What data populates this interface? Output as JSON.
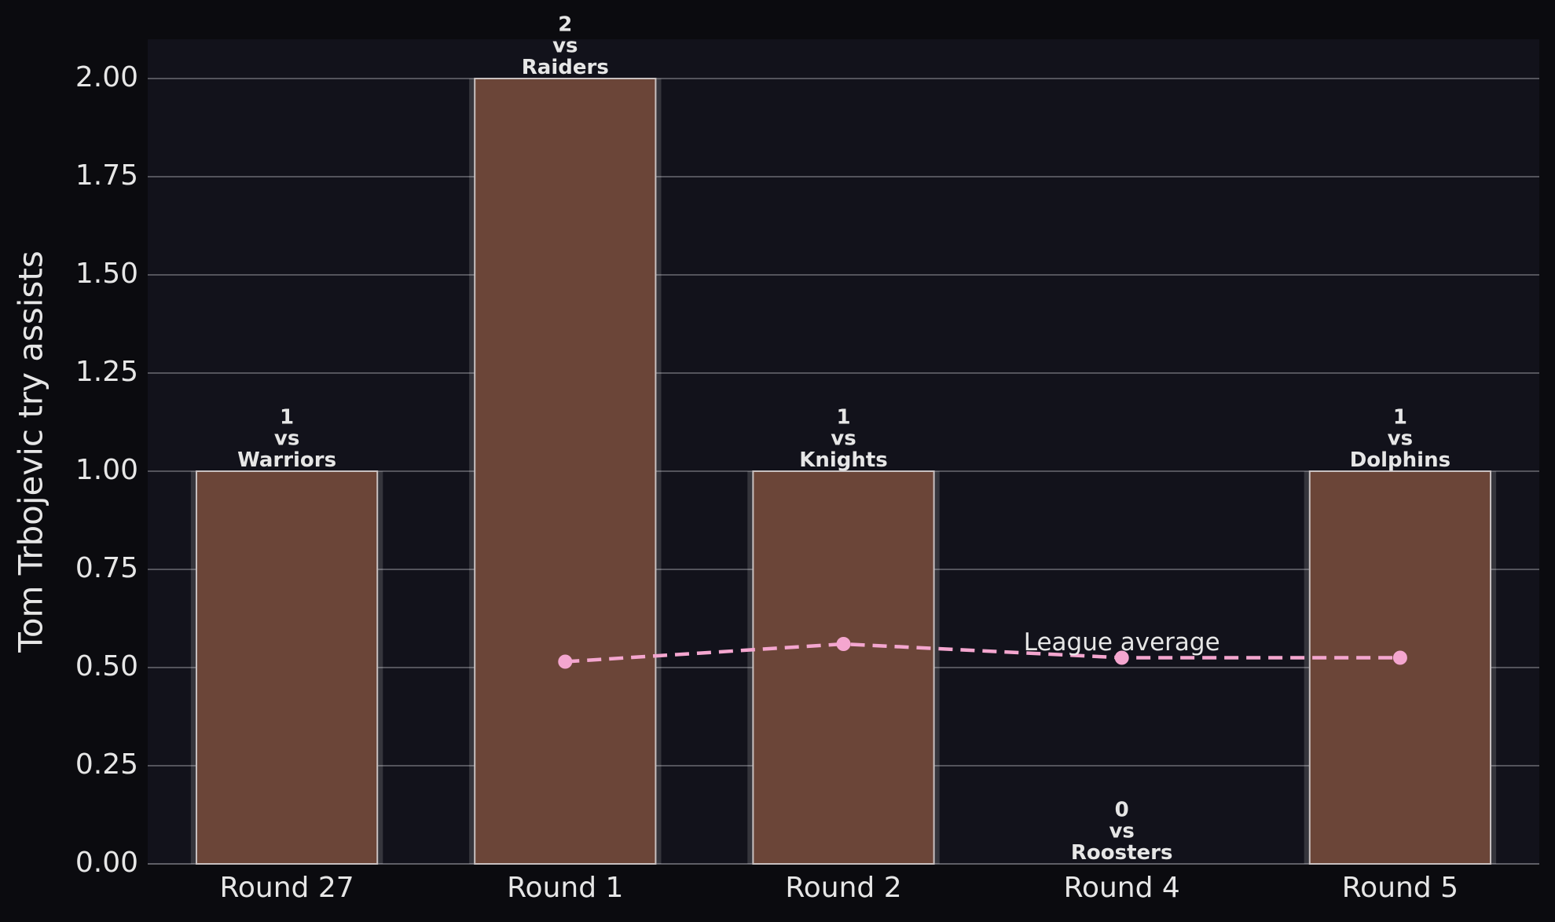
{
  "chart_data": {
    "type": "bar",
    "ylabel": "Tom Trbojevic try assists",
    "categories": [
      "Round 27",
      "Round 1",
      "Round 2",
      "Round 4",
      "Round 5"
    ],
    "values": [
      1,
      2,
      1,
      0,
      1
    ],
    "value_labels": [
      "1\nvs\nWarriors",
      "2\nvs\nRaiders",
      "1\nvs\nKnights",
      "0\nvs\nRoosters",
      "1\nvs\nDolphins"
    ],
    "color": "#6b4538",
    "series": [
      {
        "name": "League average",
        "type": "line",
        "color": "#f4a6cf",
        "values": [
          null,
          0.515,
          0.56,
          0.525,
          0.525
        ]
      }
    ],
    "ylim": [
      0,
      2.1
    ],
    "yticks": [
      {
        "value": 0,
        "label": "0.00"
      },
      {
        "value": 0.25,
        "label": "0.25"
      },
      {
        "value": 0.5,
        "label": "0.50"
      },
      {
        "value": 0.75,
        "label": "0.75"
      },
      {
        "value": 1,
        "label": "1.00"
      },
      {
        "value": 1.25,
        "label": "1.25"
      },
      {
        "value": 1.5,
        "label": "1.50"
      },
      {
        "value": 1.75,
        "label": "1.75"
      },
      {
        "value": 2,
        "label": "2.00"
      }
    ],
    "grid": true
  }
}
